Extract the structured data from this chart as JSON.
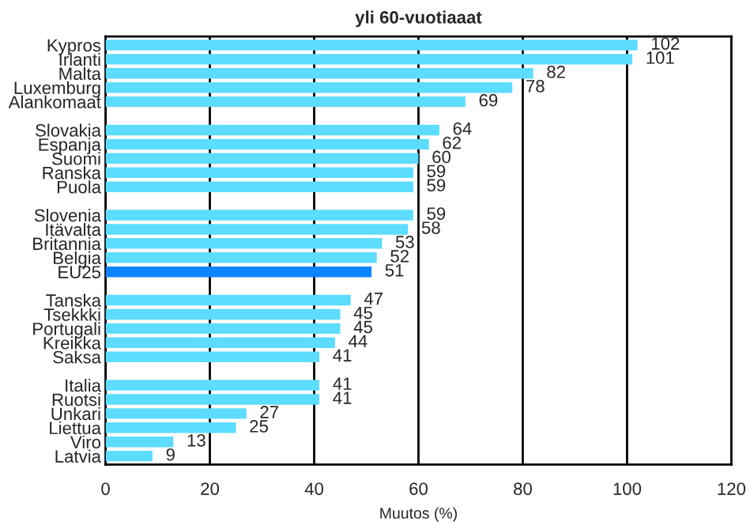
{
  "chart_data": {
    "type": "bar",
    "orientation": "horizontal",
    "title": "yli 60-vuotiaaat",
    "xlabel": "Muutos (%)",
    "categories": [
      "Kypros",
      "Irlanti",
      "Malta",
      "Luxemburg",
      "Alankomaat",
      null,
      "Slovakia",
      "Espanja",
      "Suomi",
      "Ranska",
      "Puola",
      null,
      "Slovenia",
      "Itävalta",
      "Britannia",
      "Belgia",
      "EU25",
      null,
      "Tanska",
      "Tsekkki",
      "Portugali",
      "Kreikka",
      "Saksa",
      null,
      "Italia",
      "Ruotsi",
      "Unkari",
      "Liettua",
      "Viro",
      "Latvia"
    ],
    "values": [
      102,
      101,
      82,
      78,
      69,
      null,
      64,
      62,
      60,
      59,
      59,
      null,
      59,
      58,
      53,
      52,
      51,
      null,
      47,
      45,
      45,
      44,
      41,
      null,
      41,
      41,
      27,
      25,
      13,
      9
    ],
    "colors": [
      "#5cdcff",
      "#5cdcff",
      "#5cdcff",
      "#5cdcff",
      "#5cdcff",
      null,
      "#5cdcff",
      "#5cdcff",
      "#5cdcff",
      "#5cdcff",
      "#5cdcff",
      null,
      "#5cdcff",
      "#5cdcff",
      "#5cdcff",
      "#5cdcff",
      "#0a84ff",
      null,
      "#5cdcff",
      "#5cdcff",
      "#5cdcff",
      "#5cdcff",
      "#5cdcff",
      null,
      "#5cdcff",
      "#5cdcff",
      "#5cdcff",
      "#5cdcff",
      "#5cdcff",
      "#5cdcff"
    ],
    "xlim": [
      0,
      120
    ],
    "xticks": [
      0,
      20,
      40,
      60,
      80,
      100,
      120
    ],
    "grid": "x",
    "data_labels": true
  }
}
